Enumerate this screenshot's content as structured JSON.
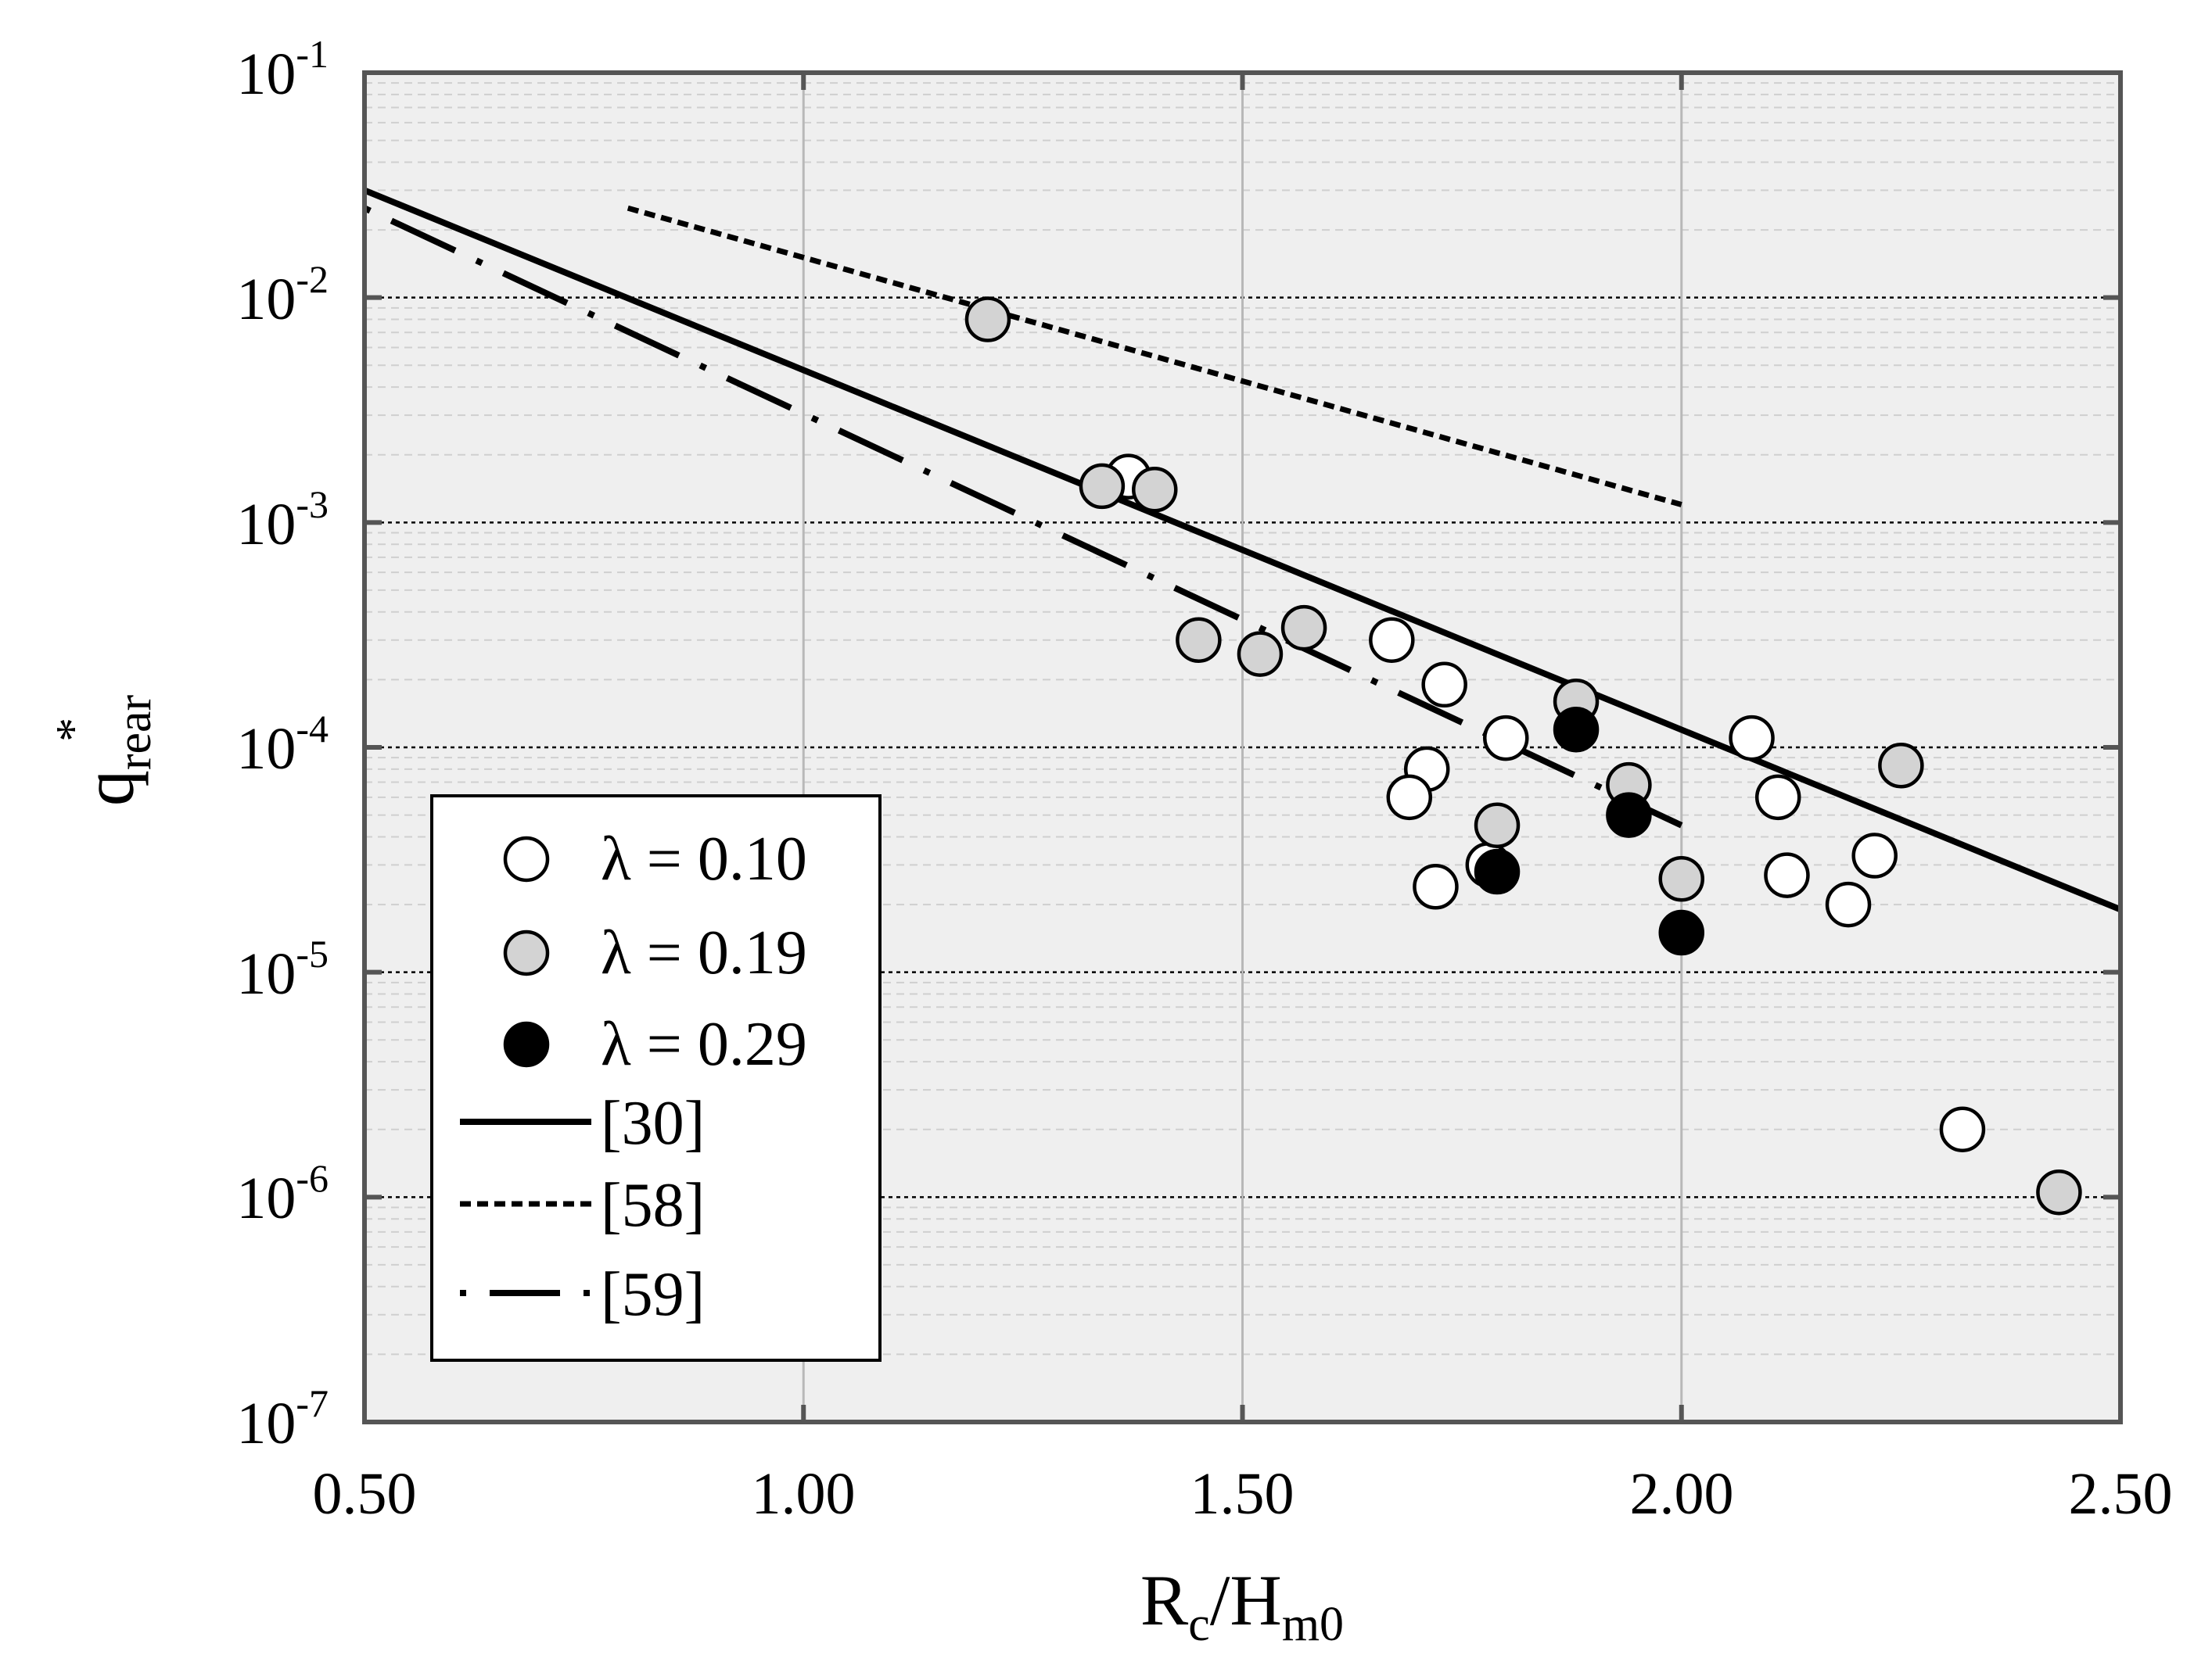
{
  "chart_data": {
    "type": "scatter",
    "title": "",
    "xlabel": {
      "base": "R",
      "sub1": "c",
      "mid": "/H",
      "sub2": "m0"
    },
    "ylabel": {
      "base": "q",
      "sub": "rear",
      "sup": "*"
    },
    "xlim": [
      0.5,
      2.5
    ],
    "ylim_log10": [
      -7,
      -1
    ],
    "yscale": "log",
    "grid": true,
    "x_ticks": [
      0.5,
      1.0,
      1.5,
      2.0,
      2.5
    ],
    "x_tick_labels": [
      "0.50",
      "1.00",
      "1.50",
      "2.00",
      "2.50"
    ],
    "y_ticks_exp": [
      -7,
      -6,
      -5,
      -4,
      -3,
      -2,
      -1
    ],
    "y_tick_base": "10",
    "y_tick_exponents": [
      "-7",
      "-6",
      "-5",
      "-4",
      "-3",
      "-2",
      "-1"
    ],
    "legend_position": "bottom-left",
    "series": [
      {
        "name": "λ = 0.10",
        "kind": "points",
        "fill": "#ffffff",
        "points": [
          [
            1.37,
            0.0016
          ],
          [
            1.67,
            0.0003
          ],
          [
            1.73,
            0.00019
          ],
          [
            1.8,
            0.00011
          ],
          [
            1.71,
            8e-05
          ],
          [
            1.69,
            6e-05
          ],
          [
            1.72,
            2.4e-05
          ],
          [
            1.78,
            3e-05
          ],
          [
            2.08,
            0.00011
          ],
          [
            2.11,
            6e-05
          ],
          [
            2.12,
            2.7e-05
          ],
          [
            2.19,
            2e-05
          ],
          [
            2.22,
            3.3e-05
          ],
          [
            2.32,
            2e-06
          ]
        ]
      },
      {
        "name": "λ = 0.19",
        "kind": "points",
        "fill": "#d3d3d3",
        "points": [
          [
            1.21,
            0.008
          ],
          [
            1.34,
            0.00145
          ],
          [
            1.4,
            0.0014
          ],
          [
            1.45,
            0.0003
          ],
          [
            1.52,
            0.00026
          ],
          [
            1.57,
            0.00034
          ],
          [
            1.79,
            4.5e-05
          ],
          [
            1.88,
            0.00016
          ],
          [
            1.94,
            6.8e-05
          ],
          [
            2.0,
            2.6e-05
          ],
          [
            2.25,
            8.3e-05
          ],
          [
            2.43,
            1.05e-06
          ]
        ]
      },
      {
        "name": "λ = 0.29",
        "kind": "points",
        "fill": "#000000",
        "points": [
          [
            1.79,
            2.8e-05
          ],
          [
            1.88,
            0.00012
          ],
          [
            1.94,
            5e-05
          ],
          [
            2.0,
            1.5e-05
          ]
        ]
      },
      {
        "name": "[30]",
        "kind": "line",
        "dash": "solid",
        "points": [
          [
            0.5,
            0.03
          ],
          [
            2.5,
            1.9e-05
          ]
        ]
      },
      {
        "name": "[58]",
        "kind": "line",
        "dash": "dotted",
        "points": [
          [
            0.8,
            0.025
          ],
          [
            2.0,
            0.0012
          ]
        ]
      },
      {
        "name": "[59]",
        "kind": "line",
        "dash": "dashdot",
        "points": [
          [
            0.5,
            0.025
          ],
          [
            2.0,
            4.5e-05
          ]
        ]
      }
    ]
  }
}
